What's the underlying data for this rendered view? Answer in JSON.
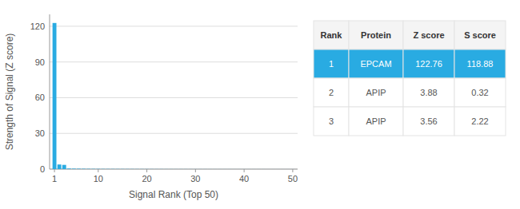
{
  "chart_data": {
    "type": "bar",
    "x": [
      1,
      2,
      3,
      4,
      5,
      6,
      7,
      8,
      9,
      10,
      11,
      12,
      13,
      14,
      15,
      16,
      17,
      18,
      19,
      20,
      21,
      22,
      23,
      24,
      25,
      26,
      27,
      28,
      29,
      30,
      31,
      32,
      33,
      34,
      35,
      36,
      37,
      38,
      39,
      40,
      41,
      42,
      43,
      44,
      45,
      46,
      47,
      48,
      49,
      50
    ],
    "values": [
      122.76,
      3.88,
      3.56,
      0.5,
      0.4,
      0.35,
      0.3,
      0.25,
      0.22,
      0.2,
      0.18,
      0.17,
      0.16,
      0.15,
      0.14,
      0.13,
      0.12,
      0.11,
      0.1,
      0.09,
      0.09,
      0.08,
      0.08,
      0.07,
      0.07,
      0.06,
      0.06,
      0.06,
      0.05,
      0.05,
      0.05,
      0.05,
      0.04,
      0.04,
      0.04,
      0.04,
      0.04,
      0.03,
      0.03,
      0.03,
      0.03,
      0.03,
      0.03,
      0.03,
      0.02,
      0.02,
      0.02,
      0.02,
      0.02,
      0.02
    ],
    "color": "#29ABE2",
    "xlabel": "Signal Rank (Top 50)",
    "ylabel": "Strength of Signal (Z score)",
    "xlim": [
      0,
      51
    ],
    "xticks": [
      1,
      10,
      20,
      30,
      40,
      50
    ],
    "ylim": [
      0,
      130
    ],
    "yticks": [
      0,
      30,
      60,
      90,
      120
    ],
    "grid": true,
    "table": {
      "columns": [
        "Rank",
        "Protein",
        "Z score",
        "S score"
      ],
      "rows": [
        [
          "1",
          "EPCAM",
          "122.76",
          "118.88"
        ],
        [
          "2",
          "APIP",
          "3.88",
          "0.32"
        ],
        [
          "3",
          "APIP",
          "3.56",
          "2.22"
        ]
      ]
    }
  }
}
